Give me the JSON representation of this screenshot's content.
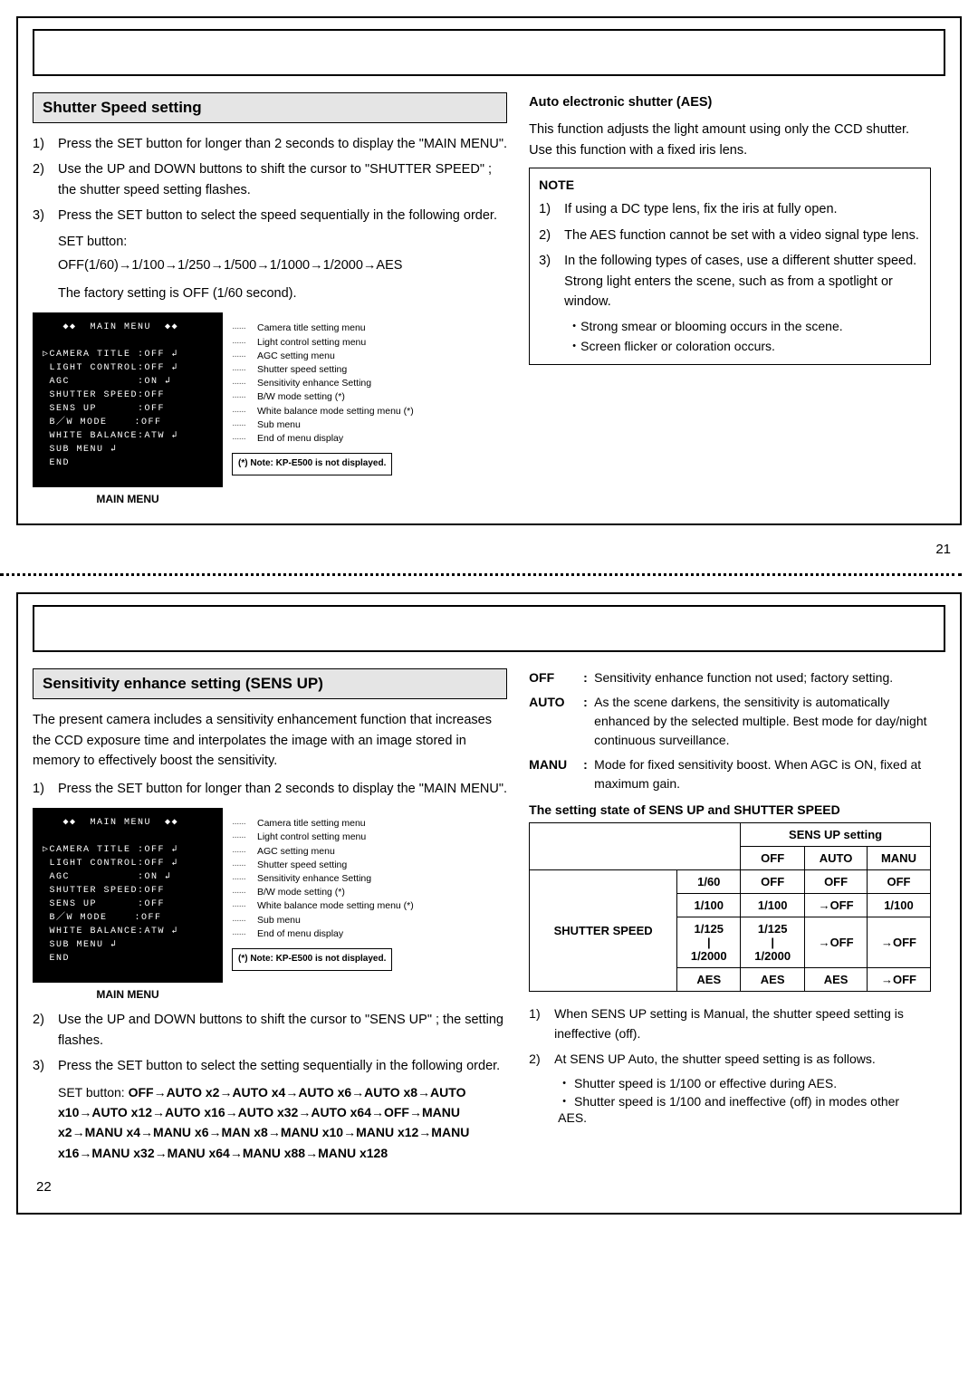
{
  "page21": {
    "section_title": "Shutter Speed setting",
    "steps": [
      {
        "n": "1)",
        "t": "Press the SET button for longer than 2 seconds to display the \"MAIN MENU\"."
      },
      {
        "n": "2)",
        "t": "Use the UP and DOWN buttons to shift the cursor to \"SHUTTER SPEED\" ; the shutter speed setting flashes."
      },
      {
        "n": "3)",
        "t": "Press the SET button to select the speed sequentially in the following order."
      }
    ],
    "set_label": "SET button:",
    "set_seq": "OFF(1/60)→1/100→1/250→1/500→1/1000→1/2000→AES",
    "factory": "The factory setting is OFF (1/60 second).",
    "aes_title": "Auto electronic shutter (AES)",
    "aes_desc": "This function adjusts the light amount using only the CCD shutter. Use this function with a fixed iris lens.",
    "note_title": "NOTE",
    "notes": [
      {
        "n": "1)",
        "t": "If using a DC type lens, fix the iris at fully open."
      },
      {
        "n": "2)",
        "t": "The AES function cannot be set with a video signal type lens."
      },
      {
        "n": "3)",
        "t": "In the following types of cases, use a different shutter speed. Strong light enters the scene, such as from a spotlight or window."
      }
    ],
    "note_sub": [
      "・Strong smear or blooming occurs in the scene.",
      "・Screen flicker or coloration occurs."
    ],
    "menu_header": "◆◆  MAIN MENU  ◆◆",
    "menu_lines": [
      "▷CAMERA TITLE :OFF ↲",
      " LIGHT CONTROL:OFF ↲",
      " AGC          :ON ↲",
      " SHUTTER SPEED:OFF",
      " SENS UP      :OFF",
      " B／W MODE    :OFF",
      " WHITE BALANCE:ATW ↲",
      " SUB MENU ↲",
      " END"
    ],
    "menu_caption": "MAIN MENU",
    "menu_descs": [
      "Camera title setting menu",
      "Light control setting menu",
      "AGC setting menu",
      "Shutter speed setting",
      "Sensitivity enhance Setting",
      "B/W mode setting (*)",
      "White balance mode setting menu (*)",
      "Sub menu",
      "End of menu display"
    ],
    "note_small": "(*) Note: KP-E500 is not displayed.",
    "page_num": "21"
  },
  "page22": {
    "section_title_a": "Sensitivity enhance ",
    "section_title_b": "setting (SENS UP)",
    "intro": "The present camera includes a sensitivity enhancement function that increases the CCD exposure time and interpolates the image with an image stored in memory to effectively boost the sensitivity.",
    "steps": [
      {
        "n": "1)",
        "t": "Press the SET button for longer than 2 seconds to display the \"MAIN MENU\"."
      },
      {
        "n": "2)",
        "t": "Use the UP and DOWN buttons to shift the cursor to \"SENS UP\" ; the setting flashes."
      },
      {
        "n": "3)",
        "t": "Press the SET button to select the setting sequentially in the following order."
      }
    ],
    "seq_intro": "SET button: ",
    "seq": "OFF→AUTO x2→AUTO x4→AUTO x6→AUTO x8→AUTO x10→AUTO x12→AUTO x16→AUTO x32→AUTO x64→OFF→MANU x2→MANU x4→MANU x6→MAN x8→MANU x10→MANU x12→MANU x16→MANU x32→MANU x64→MANU x88→MANU x128",
    "defs": [
      {
        "term": "OFF",
        "desc": "Sensitivity enhance function not used; factory setting."
      },
      {
        "term": "AUTO",
        "desc": "As the scene darkens, the sensitivity is automatically enhanced by the selected multiple. Best mode for day/night continuous surveillance."
      },
      {
        "term": "MANU",
        "desc": "Mode for fixed sensitivity boost. When AGC is ON, fixed at maximum gain."
      }
    ],
    "table_title": "The setting state of SENS UP and SHUTTER SPEED",
    "table": {
      "head_group": "SENS UP setting",
      "cols": [
        "OFF",
        "AUTO",
        "MANU"
      ],
      "row_head": "SHUTTER SPEED",
      "rows": [
        {
          "l": "1/60",
          "c": [
            "OFF",
            "OFF",
            "OFF"
          ]
        },
        {
          "l": "1/100",
          "c": [
            "1/100",
            "→OFF",
            "1/100"
          ]
        },
        {
          "l": "1/125\n|\n1/2000",
          "c": [
            "1/125\n|\n1/2000",
            "→OFF",
            "→OFF"
          ]
        },
        {
          "l": "AES",
          "c": [
            "AES",
            "AES",
            "→OFF"
          ]
        }
      ]
    },
    "right_notes": [
      {
        "n": "1)",
        "t": "When SENS UP setting is Manual, the shutter speed setting is ineffective (off)."
      },
      {
        "n": "2)",
        "t": "At SENS UP Auto, the shutter speed setting is as follows."
      }
    ],
    "right_subs": [
      "・ Shutter speed is 1/100 or effective during AES.",
      "・ Shutter speed is 1/100 and ineffective (off) in modes other AES."
    ],
    "menu_header": "◆◆  MAIN MENU  ◆◆",
    "menu_lines": [
      "▷CAMERA TITLE :OFF ↲",
      " LIGHT CONTROL:OFF ↲",
      " AGC          :ON ↲",
      " SHUTTER SPEED:OFF",
      " SENS UP      :OFF",
      " B／W MODE    :OFF",
      " WHITE BALANCE:ATW ↲",
      " SUB MENU ↲",
      " END"
    ],
    "menu_caption": "MAIN MENU",
    "menu_descs": [
      "Camera title setting menu",
      "Light control setting menu",
      "AGC setting menu",
      "Shutter speed setting",
      "Sensitivity enhance Setting",
      "B/W mode setting (*)",
      "White balance mode setting menu (*)",
      "Sub menu",
      "End of menu display"
    ],
    "note_small": "(*) Note: KP-E500 is not displayed.",
    "page_num": "22"
  }
}
